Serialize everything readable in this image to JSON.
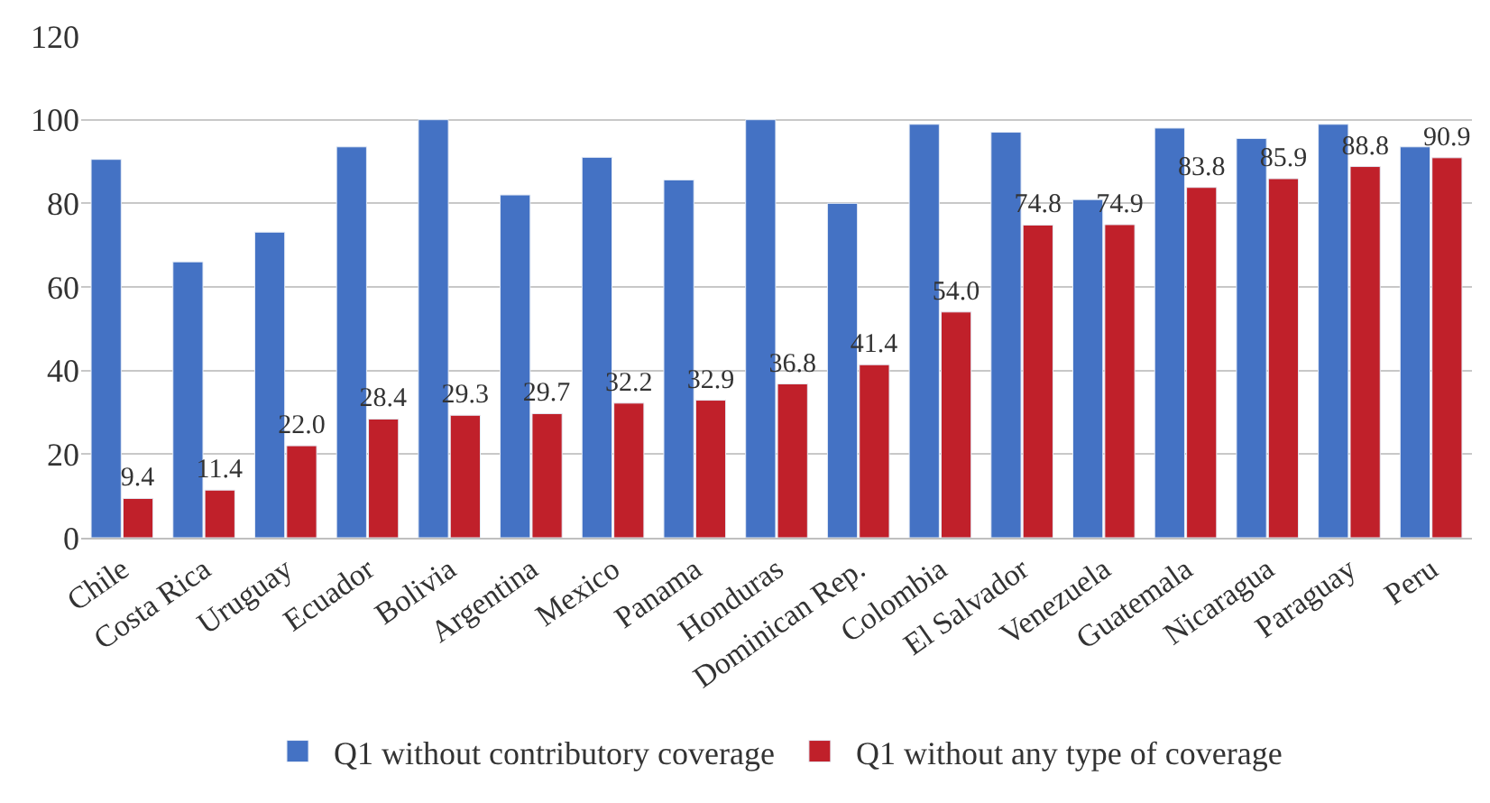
{
  "chart_data": {
    "type": "bar",
    "categories": [
      "Chile",
      "Costa Rica",
      "Uruguay",
      "Ecuador",
      "Bolivia",
      "Argentina",
      "Mexico",
      "Panama",
      "Honduras",
      "Dominican Rep.",
      "Colombia",
      "El Salvador",
      "Venezuela",
      "Guatemala",
      "Nicaragua",
      "Paraguay",
      "Peru"
    ],
    "series": [
      {
        "name": "Q1 without contributory coverage",
        "color": "#4472c4",
        "values": [
          90.5,
          66.0,
          73.1,
          93.5,
          100.0,
          82.0,
          91.0,
          85.6,
          100.0,
          80.0,
          98.9,
          97.0,
          80.9,
          98.0,
          95.5,
          98.9,
          93.5
        ]
      },
      {
        "name": "Q1 without any type of coverage",
        "color": "#c0202a",
        "values": [
          9.4,
          11.4,
          22.0,
          28.4,
          29.3,
          29.7,
          32.2,
          32.9,
          36.8,
          41.4,
          54.0,
          74.8,
          74.9,
          83.8,
          85.9,
          88.8,
          90.9
        ],
        "value_labels": [
          "9.4",
          "11.4",
          "22.0",
          "28.4",
          "29.3",
          "29.7",
          "32.2",
          "32.9",
          "36.8",
          "41.4",
          "54.0",
          "74.8",
          "74.9",
          "83.8",
          "85.9",
          "88.8",
          "90.9"
        ]
      }
    ],
    "ylim": [
      0,
      120
    ],
    "yticks": [
      0,
      20,
      40,
      60,
      80,
      100,
      120
    ],
    "grid": "y",
    "legend": "bottom"
  }
}
